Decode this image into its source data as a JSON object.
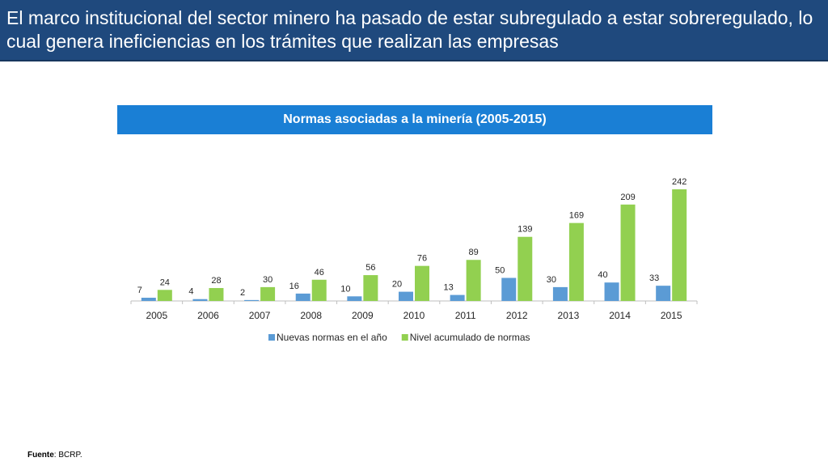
{
  "slide": {
    "title": "El marco institucional del sector minero ha pasado de estar subregulado a estar sobreregulado, lo cual genera ineficiencias en los trámites que realizan las empresas"
  },
  "source": {
    "label": "Fuente",
    "text": ": BCRP."
  },
  "colors": {
    "header_bg": "#1f497d",
    "chart_title_bg": "#1a7fd5",
    "series_new": "#5b9bd5",
    "series_cumulative": "#92d050"
  },
  "chart_data": {
    "type": "bar",
    "title": "Normas asociadas a la minería (2005-2015)",
    "categories": [
      "2005",
      "2006",
      "2007",
      "2008",
      "2009",
      "2010",
      "2011",
      "2012",
      "2013",
      "2014",
      "2015"
    ],
    "series": [
      {
        "name": "Nuevas normas en el año",
        "values": [
          7,
          4,
          2,
          16,
          10,
          20,
          13,
          50,
          30,
          40,
          33
        ],
        "color": "#5b9bd5"
      },
      {
        "name": "Nivel acumulado de normas",
        "values": [
          24,
          28,
          30,
          46,
          56,
          76,
          89,
          139,
          169,
          209,
          242
        ],
        "color": "#92d050"
      }
    ],
    "ylim": [
      0,
      250
    ],
    "grid": false,
    "legend_position": "bottom",
    "data_labels": true
  }
}
